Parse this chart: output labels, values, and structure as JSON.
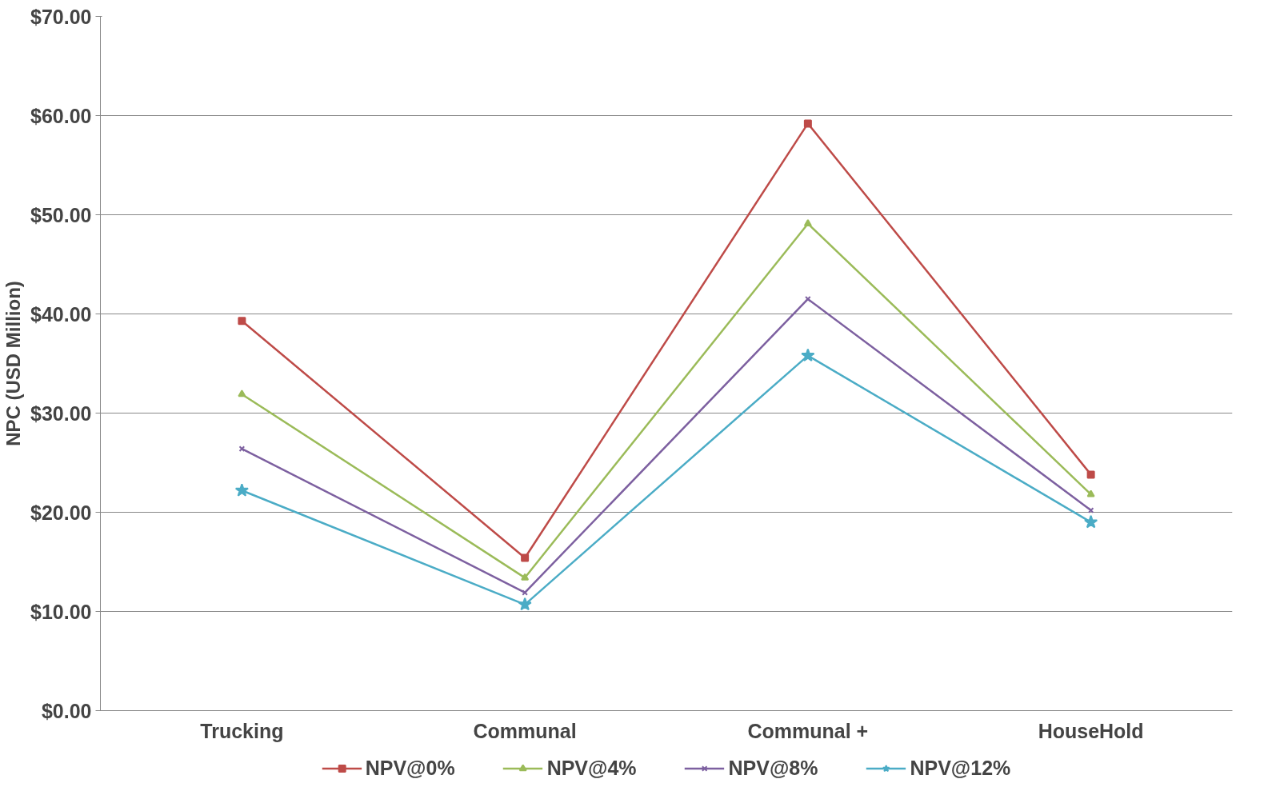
{
  "chart_data": {
    "type": "line",
    "ylabel": "NPC (USD Million)",
    "categories": [
      "Trucking",
      "Communal",
      "Communal +",
      "HouseHold"
    ],
    "series": [
      {
        "name": "NPV@0%",
        "color": "#be4b48",
        "marker": "square",
        "values": [
          39.3,
          15.4,
          59.2,
          23.8
        ]
      },
      {
        "name": "NPV@4%",
        "color": "#9bbb59",
        "marker": "triangle",
        "values": [
          31.9,
          13.4,
          49.1,
          21.8
        ]
      },
      {
        "name": "NPV@8%",
        "color": "#7d60a0",
        "marker": "cross",
        "values": [
          26.4,
          11.9,
          41.5,
          20.2
        ]
      },
      {
        "name": "NPV@12%",
        "color": "#4bacc6",
        "marker": "star",
        "values": [
          22.2,
          10.7,
          35.8,
          19.0
        ]
      }
    ],
    "ylim": [
      0,
      70
    ],
    "yticks": [
      {
        "value": 0,
        "label": "$0.00"
      },
      {
        "value": 10,
        "label": "$10.00"
      },
      {
        "value": 20,
        "label": "$20.00"
      },
      {
        "value": 30,
        "label": "$30.00"
      },
      {
        "value": 40,
        "label": "$40.00"
      },
      {
        "value": 50,
        "label": "$50.00"
      },
      {
        "value": 60,
        "label": "$60.00"
      },
      {
        "value": 70,
        "label": "$70.00"
      }
    ],
    "grid": "y",
    "legend": "bottom",
    "line_style": "solid"
  }
}
